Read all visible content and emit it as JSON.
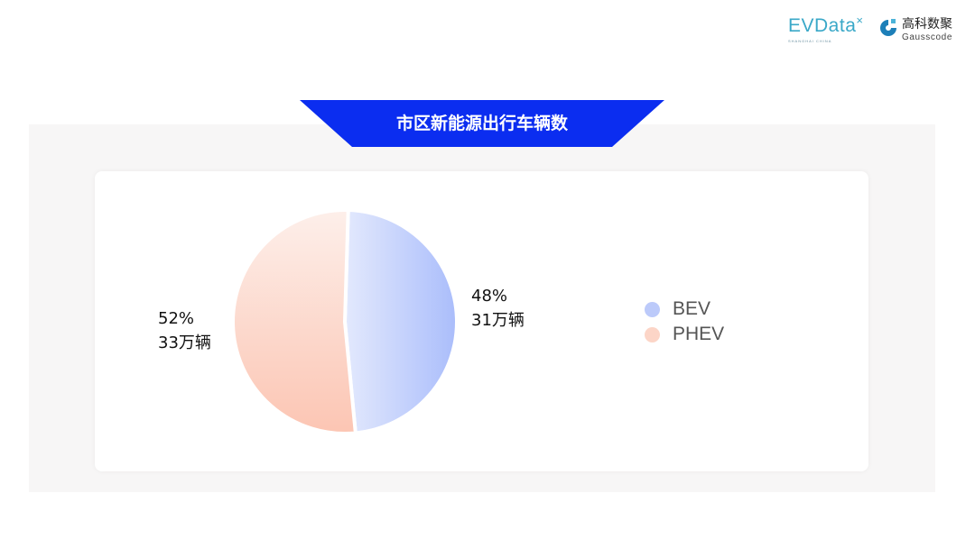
{
  "logos": {
    "evdata": "EVData",
    "evdata_sub": "SHANGHAI CHINA",
    "gauss_cn": "高科数聚",
    "gauss_en": "Gausscode"
  },
  "colors": {
    "title_bg": "#0b2df0",
    "bev": "#b4c5fb",
    "phev": "#fcc8b6",
    "panel": "#f7f6f6"
  },
  "chart_data": {
    "type": "pie",
    "title": "市区新能源出行车辆数",
    "slices": [
      {
        "name": "BEV",
        "percent": 48,
        "value_label": "31万辆",
        "percent_label": "48%"
      },
      {
        "name": "PHEV",
        "percent": 52,
        "value_label": "33万辆",
        "percent_label": "52%"
      }
    ],
    "legend": "right"
  }
}
